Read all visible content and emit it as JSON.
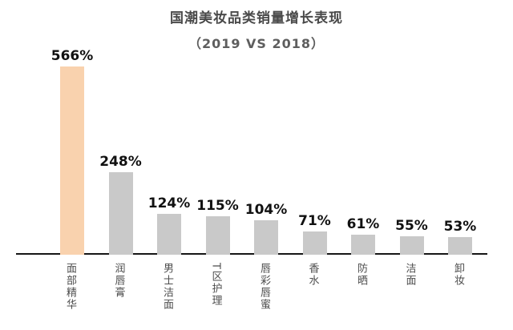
{
  "chart_data": {
    "type": "bar",
    "title": "国潮美妆品类销量增长表现",
    "subtitle": "（2019 VS 2018）",
    "categories": [
      "面部精华",
      "润唇膏",
      "男士洁面",
      "T区护理",
      "唇彩唇蜜",
      "香水",
      "防晒",
      "洁面",
      "卸妆"
    ],
    "values": [
      566,
      248,
      124,
      115,
      104,
      71,
      61,
      55,
      53
    ],
    "value_labels": [
      "566%",
      "248%",
      "124%",
      "115%",
      "104%",
      "71%",
      "61%",
      "55%",
      "53%"
    ],
    "highlight_index": 0,
    "xlabel": "",
    "ylabel": "",
    "ylim": [
      0,
      600
    ],
    "grid": false,
    "legend": null,
    "colors": {
      "highlight_bar": "#F9D2AE",
      "default_bar": "#C9C9C9",
      "axis": "#161616",
      "title": "#4A4A4A",
      "subtitle": "#5E5E5E",
      "value_label": "#111111",
      "category_label": "#4D4D4D"
    }
  }
}
